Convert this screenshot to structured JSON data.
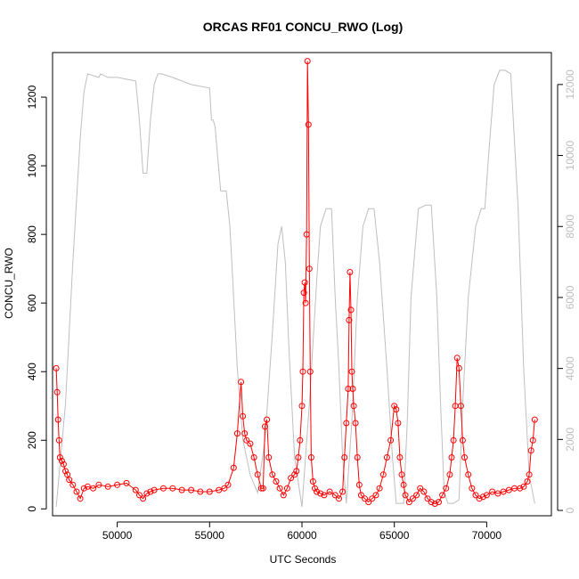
{
  "chart_data": {
    "type": "line",
    "title": "ORCAS RF01 CONCU_RWO (Log)",
    "xlabel": "UTC Seconds",
    "ylabel": "CONCU_RWO",
    "xlim": [
      46500,
      73500
    ],
    "ylim": [
      -20,
      1330
    ],
    "y2lim": [
      -150,
      12900
    ],
    "x_ticks": [
      "50000",
      "55000",
      "60000",
      "65000",
      "70000"
    ],
    "y_ticks": [
      "0",
      "200",
      "400",
      "600",
      "800",
      "1000",
      "1200"
    ],
    "y2_ticks": [
      "0",
      "2000",
      "4000",
      "6000",
      "8000",
      "10000",
      "12000"
    ],
    "grid": false,
    "colors": {
      "primary": "#ff0000",
      "secondary": "#bebebe",
      "axis": "#000000",
      "right_axis_labels": "#bebebe"
    },
    "series": [
      {
        "type": "line+points",
        "color": "#ff0000",
        "x": [
          46700,
          46750,
          46800,
          46850,
          46900,
          47000,
          47100,
          47200,
          47300,
          47400,
          47600,
          47800,
          48000,
          48200,
          48400,
          48700,
          49000,
          49500,
          50000,
          50500,
          51000,
          51200,
          51400,
          51600,
          51800,
          52000,
          52500,
          53000,
          53500,
          54000,
          54500,
          55000,
          55500,
          55800,
          56000,
          56300,
          56500,
          56700,
          56800,
          56900,
          57000,
          57200,
          57400,
          57600,
          57800,
          57900,
          58000,
          58100,
          58200,
          58400,
          58600,
          58800,
          59000,
          59200,
          59400,
          59600,
          59700,
          59800,
          59900,
          60000,
          60050,
          60100,
          60150,
          60200,
          60250,
          60300,
          60350,
          60400,
          60450,
          60500,
          60600,
          60700,
          60800,
          61000,
          61200,
          61500,
          61800,
          62000,
          62200,
          62300,
          62400,
          62500,
          62550,
          62600,
          62650,
          62700,
          62750,
          62800,
          62900,
          63000,
          63100,
          63200,
          63400,
          63600,
          63800,
          64000,
          64200,
          64400,
          64600,
          64800,
          65000,
          65100,
          65200,
          65300,
          65400,
          65500,
          65600,
          65800,
          66000,
          66200,
          66400,
          66600,
          66800,
          67000,
          67200,
          67400,
          67600,
          67800,
          68000,
          68100,
          68200,
          68300,
          68400,
          68500,
          68600,
          68700,
          68800,
          69000,
          69200,
          69400,
          69600,
          69800,
          70000,
          70300,
          70600,
          70900,
          71200,
          71500,
          71800,
          72000,
          72200,
          72300,
          72400,
          72500,
          72600
        ],
        "y": [
          410,
          340,
          260,
          200,
          150,
          140,
          130,
          110,
          100,
          85,
          70,
          50,
          30,
          60,
          65,
          60,
          70,
          65,
          70,
          75,
          55,
          40,
          30,
          45,
          50,
          55,
          60,
          60,
          55,
          55,
          50,
          50,
          55,
          60,
          70,
          120,
          220,
          370,
          270,
          220,
          200,
          190,
          150,
          100,
          60,
          60,
          240,
          260,
          150,
          100,
          80,
          60,
          40,
          60,
          90,
          100,
          110,
          150,
          200,
          300,
          400,
          630,
          660,
          600,
          800,
          1305,
          1120,
          700,
          400,
          150,
          80,
          60,
          50,
          45,
          40,
          50,
          40,
          30,
          50,
          150,
          250,
          350,
          550,
          690,
          580,
          400,
          350,
          300,
          250,
          150,
          70,
          40,
          30,
          20,
          30,
          40,
          60,
          100,
          150,
          200,
          300,
          290,
          250,
          150,
          100,
          70,
          40,
          20,
          30,
          40,
          60,
          50,
          30,
          20,
          15,
          20,
          40,
          60,
          100,
          150,
          200,
          300,
          440,
          410,
          300,
          200,
          150,
          100,
          60,
          40,
          30,
          35,
          40,
          50,
          45,
          50,
          55,
          60,
          60,
          65,
          80,
          100,
          170,
          200,
          260
        ]
      },
      {
        "type": "line",
        "color": "#bebebe",
        "axis": "right",
        "x": [
          46700,
          47200,
          47600,
          48000,
          48200,
          48400,
          49000,
          49100,
          49500,
          50000,
          51000,
          51200,
          51400,
          51600,
          51800,
          52000,
          52200,
          52400,
          53000,
          53500,
          54000,
          55000,
          55100,
          55200,
          55300,
          55600,
          55900,
          56100,
          56300,
          56500,
          56800,
          57200,
          57600,
          58000,
          58400,
          58700,
          58900,
          59100,
          59300,
          59600,
          60000,
          60400,
          60800,
          61000,
          61300,
          61600,
          61800,
          62000,
          62200,
          62400,
          62700,
          63000,
          63300,
          63600,
          63900,
          64200,
          64600,
          64900,
          65100,
          65300,
          65500,
          65700,
          65900,
          66300,
          66700,
          67000,
          67300,
          67500,
          67700,
          67900,
          68200,
          68500,
          68700,
          69000,
          69400,
          69700,
          69900,
          70100,
          70400,
          70700,
          71000,
          71300,
          71700,
          72000,
          72300,
          72600
        ],
        "y": [
          100,
          3000,
          7000,
          10500,
          11800,
          12300,
          12200,
          12300,
          12200,
          12200,
          12100,
          11000,
          9500,
          9500,
          11000,
          12000,
          12300,
          12300,
          12200,
          12100,
          12000,
          11900,
          11000,
          11000,
          10800,
          9000,
          9000,
          8000,
          6000,
          4000,
          2000,
          1000,
          500,
          2000,
          5000,
          7500,
          8000,
          7000,
          4500,
          1500,
          100,
          3000,
          6500,
          8000,
          8500,
          8500,
          6000,
          4000,
          1500,
          200,
          2500,
          6000,
          8000,
          8500,
          8500,
          7000,
          4000,
          1500,
          200,
          200,
          200,
          2500,
          6000,
          8500,
          8600,
          8600,
          6000,
          3000,
          500,
          200,
          200,
          300,
          3000,
          6000,
          8000,
          8500,
          8500,
          10000,
          12000,
          12400,
          12400,
          12300,
          8500,
          4000,
          1000,
          200
        ]
      }
    ]
  }
}
